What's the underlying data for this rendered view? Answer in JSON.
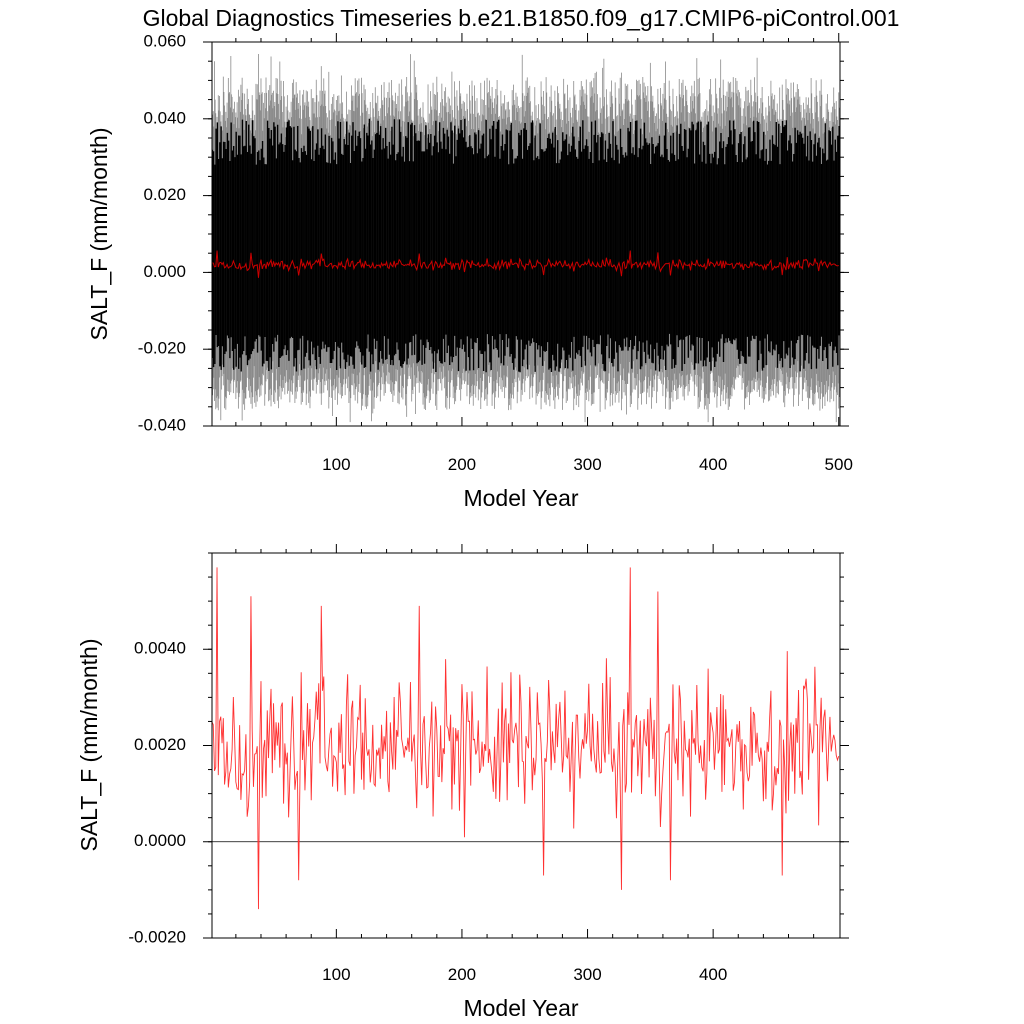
{
  "figure_title": "Global Diagnostics Timeseries b.e21.B1850.f09_g17.CMIP6-piControl.001",
  "colors": {
    "monthly_envelope": "#8a8a8a",
    "monthly_core": "#000000",
    "annual_mean": "#cc0000",
    "annual_mean_bright": "#ff3030",
    "axes": "#000000",
    "zero_line": "#000000"
  },
  "chart_data": [
    {
      "type": "line",
      "title": "Global Diagnostics Timeseries b.e21.B1850.f09_g17.CMIP6-piControl.001",
      "xlabel": "Model Year",
      "ylabel": "SALT_F (mm/month)",
      "xlim": [
        1,
        501
      ],
      "ylim": [
        -0.04,
        0.06
      ],
      "x_ticks": [
        100,
        200,
        300,
        400,
        500
      ],
      "x_tick_labels": [
        "100",
        "200",
        "300",
        "400",
        "500"
      ],
      "y_ticks": [
        -0.04,
        -0.02,
        0.0,
        0.02,
        0.04,
        0.06
      ],
      "y_tick_labels": [
        "-0.040",
        "-0.020",
        "0.000",
        "0.020",
        "0.040",
        "0.060"
      ],
      "series": [
        {
          "key": "monthly",
          "years": [
            1,
            500
          ],
          "typical_range": [
            -0.03,
            0.045
          ],
          "extreme_range": [
            -0.039,
            0.057
          ],
          "mean": 0.002
        },
        {
          "key": "annual_mean",
          "years": [
            1,
            500
          ],
          "mean": 0.002,
          "range": [
            -0.0014,
            0.0057
          ]
        }
      ]
    },
    {
      "type": "line",
      "xlabel": "Model Year",
      "ylabel": "SALT_F (mm/month)",
      "xlim": [
        1,
        501
      ],
      "ylim": [
        -0.002,
        0.006
      ],
      "x_ticks": [
        100,
        200,
        300,
        400
      ],
      "x_tick_labels": [
        "100",
        "200",
        "300",
        "400"
      ],
      "y_ticks": [
        -0.002,
        0.0,
        0.002,
        0.004
      ],
      "y_tick_labels": [
        "-0.0020",
        "0.0000",
        "0.0020",
        "0.0040"
      ],
      "zero_line": true,
      "series": [
        {
          "key": "annual_mean",
          "years": [
            1,
            500
          ],
          "mean": 0.002,
          "std": 0.0012,
          "peaks": [
            [
              5,
              0.0057
            ],
            [
              32,
              0.0051
            ],
            [
              88,
              0.0049
            ],
            [
              166,
              0.0049
            ],
            [
              334,
              0.0057
            ],
            [
              356,
              0.0052
            ]
          ],
          "troughs": [
            [
              38,
              -0.0014
            ],
            [
              70,
              -0.0008
            ],
            [
              265,
              -0.0007
            ],
            [
              327,
              -0.001
            ],
            [
              366,
              -0.0008
            ],
            [
              455,
              -0.0007
            ]
          ]
        }
      ]
    }
  ]
}
